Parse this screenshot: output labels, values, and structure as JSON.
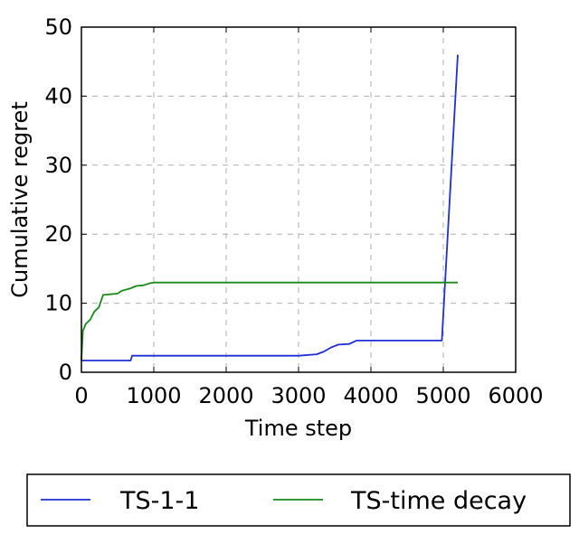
{
  "chart_data": {
    "type": "line",
    "title": "",
    "xlabel": "Time step",
    "ylabel": "Cumulative regret",
    "xlim": [
      0,
      6000
    ],
    "ylim": [
      0,
      50
    ],
    "xticks": [
      "0",
      "1000",
      "2000",
      "3000",
      "4000",
      "5000",
      "6000"
    ],
    "yticks": [
      "0",
      "10",
      "20",
      "30",
      "40",
      "50"
    ],
    "grid": true,
    "legend_placement": "below",
    "series": [
      {
        "name": "TS-1-1",
        "color": "#1f2fd6",
        "points": [
          [
            0,
            1.7
          ],
          [
            680,
            1.7
          ],
          [
            700,
            2.4
          ],
          [
            1000,
            2.4
          ],
          [
            2000,
            2.4
          ],
          [
            3000,
            2.4
          ],
          [
            3250,
            2.6
          ],
          [
            3350,
            3.0
          ],
          [
            3450,
            3.6
          ],
          [
            3550,
            4.0
          ],
          [
            3700,
            4.1
          ],
          [
            3800,
            4.6
          ],
          [
            4500,
            4.6
          ],
          [
            4980,
            4.6
          ],
          [
            5200,
            46.0
          ]
        ]
      },
      {
        "name": "TS-time decay",
        "color": "#1a8a1a",
        "points": [
          [
            0,
            1.7
          ],
          [
            20,
            6.0
          ],
          [
            60,
            7.0
          ],
          [
            120,
            7.6
          ],
          [
            180,
            8.8
          ],
          [
            240,
            9.4
          ],
          [
            300,
            11.2
          ],
          [
            400,
            11.3
          ],
          [
            500,
            11.4
          ],
          [
            560,
            11.8
          ],
          [
            660,
            12.1
          ],
          [
            760,
            12.5
          ],
          [
            860,
            12.6
          ],
          [
            950,
            12.9
          ],
          [
            1000,
            13.0
          ],
          [
            2000,
            13.0
          ],
          [
            3000,
            13.0
          ],
          [
            4000,
            13.0
          ],
          [
            5000,
            13.0
          ],
          [
            5200,
            13.0
          ]
        ]
      }
    ]
  }
}
